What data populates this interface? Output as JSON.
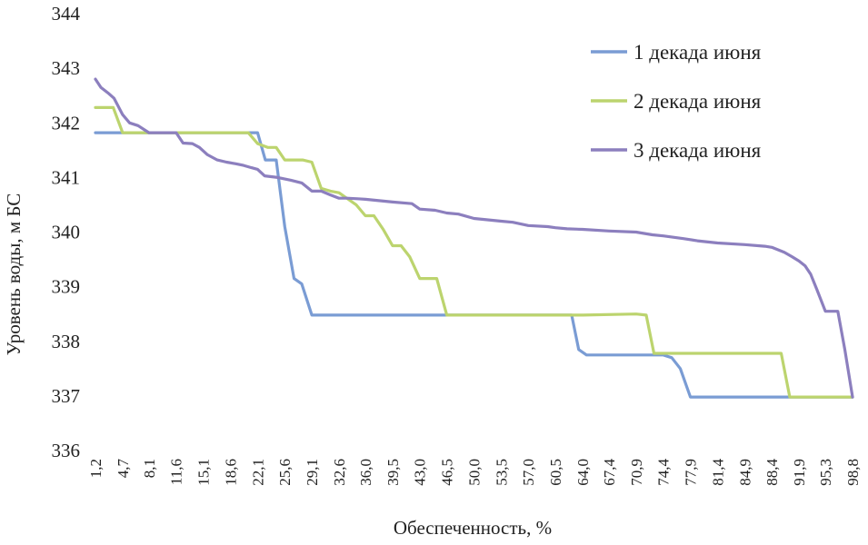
{
  "chart_data": {
    "type": "line",
    "title": "",
    "xlabel": "Обеспеченность, %",
    "ylabel": "Уровень воды, м БС",
    "ylim": [
      336,
      344
    ],
    "xlim": [
      1.2,
      98.8
    ],
    "yticks": [
      "336",
      "337",
      "338",
      "339",
      "340",
      "341",
      "342",
      "343",
      "344"
    ],
    "xtick_labels": [
      "1,2",
      "4,7",
      "8,1",
      "11,6",
      "15,1",
      "18,6",
      "22,1",
      "25,6",
      "29,1",
      "32,6",
      "36,0",
      "39,5",
      "43,0",
      "46,5",
      "50,0",
      "53,5",
      "57,0",
      "60,5",
      "64,0",
      "67,4",
      "70,9",
      "74,4",
      "77,9",
      "81,4",
      "84,9",
      "88,4",
      "91,9",
      "95,3",
      "98,8"
    ],
    "xtick_values": [
      1.2,
      4.7,
      8.1,
      11.6,
      15.1,
      18.6,
      22.1,
      25.6,
      29.1,
      32.6,
      36.0,
      39.5,
      43.0,
      46.5,
      50.0,
      53.5,
      57.0,
      60.5,
      64.0,
      67.4,
      70.9,
      74.4,
      77.9,
      81.4,
      84.9,
      88.4,
      91.9,
      95.3,
      98.8
    ],
    "grid": false,
    "legend_position": "top-right",
    "series": [
      {
        "name": "1 декада июня",
        "color": "#7a9cd4",
        "x": [
          1.2,
          22.1,
          23.1,
          24.5,
          25.6,
          26.8,
          27.8,
          29.1,
          46.5,
          62.6,
          63.5,
          64.5,
          74.4,
          75.5,
          76.6,
          77.9,
          98.8
        ],
        "y": [
          341.82,
          341.82,
          341.32,
          341.32,
          340.1,
          339.15,
          339.05,
          338.48,
          338.48,
          338.48,
          337.85,
          337.75,
          337.75,
          337.7,
          337.5,
          336.98,
          336.98
        ]
      },
      {
        "name": "2 декада июня",
        "color": "#bcd46e",
        "x": [
          1.2,
          3.5,
          4.7,
          8.1,
          18.6,
          20.9,
          22.1,
          23.4,
          24.5,
          25.6,
          27.9,
          29.1,
          30.3,
          31.5,
          32.6,
          33.6,
          34.8,
          36.0,
          37.1,
          38.3,
          39.5,
          40.6,
          41.7,
          43.0,
          44.0,
          45.2,
          46.5,
          50.0,
          57.0,
          64.0,
          70.9,
          72.2,
          73.2,
          74.4,
          88.4,
          89.6,
          90.7,
          98.8
        ],
        "y": [
          342.28,
          342.28,
          341.82,
          341.82,
          341.82,
          341.82,
          341.62,
          341.55,
          341.55,
          341.32,
          341.32,
          341.28,
          340.8,
          340.75,
          340.72,
          340.62,
          340.5,
          340.3,
          340.3,
          340.05,
          339.75,
          339.75,
          339.55,
          339.15,
          339.15,
          339.15,
          338.48,
          338.48,
          338.48,
          338.48,
          338.5,
          338.48,
          337.78,
          337.78,
          337.78,
          337.78,
          336.98,
          336.98
        ]
      },
      {
        "name": "3 декада июня",
        "color": "#8c7fbe",
        "x": [
          1.2,
          1.9,
          2.8,
          3.6,
          4.7,
          5.6,
          6.7,
          8.1,
          9.3,
          11.6,
          12.5,
          13.7,
          14.6,
          15.6,
          16.9,
          18.1,
          19.3,
          20.3,
          21.3,
          22.1,
          23.0,
          24.7,
          26.4,
          27.8,
          29.1,
          30.3,
          31.5,
          32.6,
          33.6,
          35.0,
          36.0,
          39.5,
          42.0,
          43.0,
          45.0,
          46.5,
          48.0,
          50.0,
          53.5,
          55.0,
          57.0,
          59.5,
          60.5,
          62.0,
          64.0,
          67.4,
          70.9,
          73.0,
          74.4,
          77.0,
          78.8,
          81.4,
          84.9,
          87.5,
          88.4,
          90.0,
          91.0,
          91.9,
          92.7,
          93.4,
          94.2,
          95.3,
          96.0,
          96.9,
          97.8,
          98.8
        ],
        "y": [
          342.8,
          342.65,
          342.55,
          342.45,
          342.15,
          342.0,
          341.95,
          341.82,
          341.82,
          341.82,
          341.63,
          341.62,
          341.55,
          341.42,
          341.32,
          341.28,
          341.25,
          341.22,
          341.18,
          341.15,
          341.03,
          341.0,
          340.95,
          340.9,
          340.75,
          340.75,
          340.68,
          340.62,
          340.62,
          340.61,
          340.6,
          340.55,
          340.52,
          340.42,
          340.4,
          340.35,
          340.33,
          340.25,
          340.2,
          340.18,
          340.12,
          340.1,
          340.08,
          340.06,
          340.05,
          340.02,
          340.0,
          339.95,
          339.93,
          339.88,
          339.84,
          339.8,
          339.77,
          339.74,
          339.72,
          339.63,
          339.55,
          339.47,
          339.38,
          339.23,
          338.95,
          338.55,
          338.55,
          338.55,
          337.85,
          336.98
        ]
      }
    ]
  }
}
